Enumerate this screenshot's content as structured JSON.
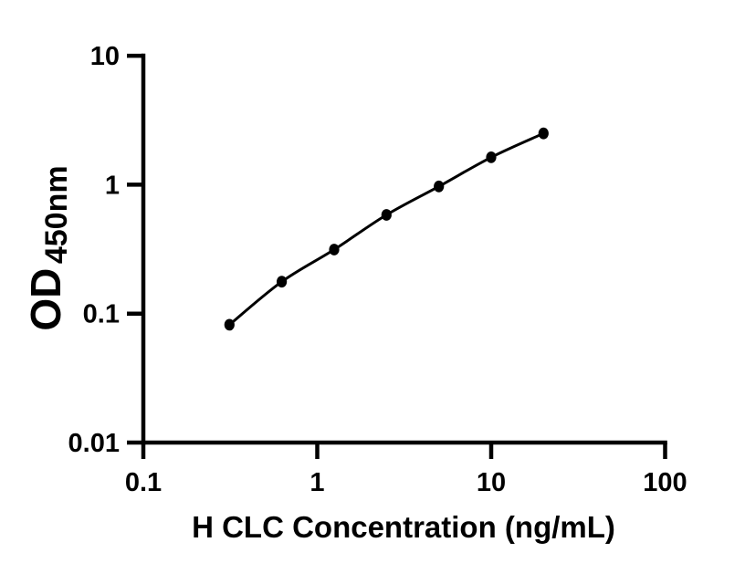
{
  "chart_data": {
    "type": "scatter",
    "title": "",
    "xlabel": "H CLC Concentration (ng/mL)",
    "ylabel_main": "OD",
    "ylabel_sub": "450nm",
    "x": [
      0.3125,
      0.625,
      1.25,
      2.5,
      5,
      10,
      20
    ],
    "y": [
      0.082,
      0.177,
      0.314,
      0.583,
      0.97,
      1.63,
      2.5
    ],
    "xscale": "log",
    "yscale": "log",
    "xlim": [
      0.1,
      100
    ],
    "ylim": [
      0.01,
      10
    ],
    "x_ticks": [
      0.1,
      1,
      10,
      100
    ],
    "x_tick_labels": [
      "0.1",
      "1",
      "10",
      "100"
    ],
    "y_ticks": [
      0.01,
      0.1,
      1,
      10
    ],
    "y_tick_labels": [
      "0.01",
      "0.1",
      "1",
      "10"
    ],
    "grid": false,
    "legend": false,
    "marker_shape": "filled-circle",
    "colors": {
      "axis": "#000000",
      "line": "#000000",
      "marker": "#000000",
      "text": "#000000",
      "background": "#ffffff"
    }
  }
}
